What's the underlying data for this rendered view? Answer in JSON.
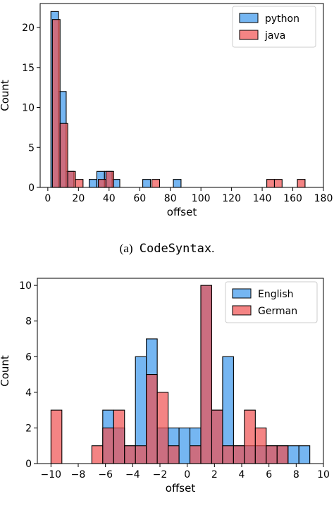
{
  "chart_data": [
    {
      "type": "bar",
      "xlabel": "offset",
      "ylabel": "Count",
      "xlim": [
        -5,
        180
      ],
      "ylim": [
        0,
        23
      ],
      "xticks": [
        0,
        20,
        40,
        60,
        80,
        100,
        120,
        140,
        160,
        180
      ],
      "yticks": [
        0,
        5,
        10,
        15,
        20
      ],
      "legend_position": "top-right",
      "bin_width": 5,
      "series": [
        {
          "name": "python",
          "color": "#5da9f0",
          "bins": [
            {
              "x": 2,
              "count": 22
            },
            {
              "x": 7,
              "count": 12
            },
            {
              "x": 12,
              "count": 2
            },
            {
              "x": 27,
              "count": 1
            },
            {
              "x": 32,
              "count": 2
            },
            {
              "x": 37,
              "count": 2
            },
            {
              "x": 42,
              "count": 1
            },
            {
              "x": 62,
              "count": 1
            },
            {
              "x": 82,
              "count": 1
            }
          ]
        },
        {
          "name": "java",
          "color": "#f05050",
          "bins": [
            {
              "x": 3,
              "count": 21
            },
            {
              "x": 8,
              "count": 8
            },
            {
              "x": 13,
              "count": 2
            },
            {
              "x": 18,
              "count": 1
            },
            {
              "x": 33,
              "count": 1
            },
            {
              "x": 38,
              "count": 2
            },
            {
              "x": 68,
              "count": 1
            },
            {
              "x": 143,
              "count": 1
            },
            {
              "x": 148,
              "count": 1
            },
            {
              "x": 163,
              "count": 1
            }
          ]
        }
      ]
    },
    {
      "type": "bar",
      "xlabel": "offset",
      "ylabel": "Count",
      "xlim": [
        -11,
        10
      ],
      "ylim": [
        0,
        10.4
      ],
      "xticks": [
        -10,
        -8,
        -6,
        -4,
        -2,
        0,
        2,
        4,
        6,
        8,
        10
      ],
      "yticks": [
        0,
        2,
        4,
        6,
        8,
        10
      ],
      "legend_position": "top-right",
      "bin_width": 0.8,
      "series": [
        {
          "name": "English",
          "color": "#5da9f0",
          "bins": [
            {
              "x": -6.2,
              "count": 3
            },
            {
              "x": -5.4,
              "count": 2
            },
            {
              "x": -4.6,
              "count": 1
            },
            {
              "x": -3.8,
              "count": 6
            },
            {
              "x": -3.0,
              "count": 7
            },
            {
              "x": -2.2,
              "count": 2
            },
            {
              "x": -1.4,
              "count": 2
            },
            {
              "x": -0.6,
              "count": 2
            },
            {
              "x": 0.2,
              "count": 2
            },
            {
              "x": 1.0,
              "count": 10
            },
            {
              "x": 1.8,
              "count": 3
            },
            {
              "x": 2.6,
              "count": 6
            },
            {
              "x": 3.4,
              "count": 1
            },
            {
              "x": 4.2,
              "count": 1
            },
            {
              "x": 5.0,
              "count": 1
            },
            {
              "x": 5.8,
              "count": 1
            },
            {
              "x": 6.6,
              "count": 1
            },
            {
              "x": 7.4,
              "count": 1
            },
            {
              "x": 8.2,
              "count": 1
            }
          ]
        },
        {
          "name": "German",
          "color": "#f05050",
          "bins": [
            {
              "x": -10.0,
              "count": 3
            },
            {
              "x": -7.0,
              "count": 1
            },
            {
              "x": -6.2,
              "count": 2
            },
            {
              "x": -5.4,
              "count": 3
            },
            {
              "x": -4.6,
              "count": 1
            },
            {
              "x": -3.8,
              "count": 1
            },
            {
              "x": -3.0,
              "count": 5
            },
            {
              "x": -2.2,
              "count": 4
            },
            {
              "x": -1.4,
              "count": 1
            },
            {
              "x": 0.2,
              "count": 1
            },
            {
              "x": 1.0,
              "count": 10
            },
            {
              "x": 1.8,
              "count": 3
            },
            {
              "x": 2.6,
              "count": 1
            },
            {
              "x": 3.4,
              "count": 1
            },
            {
              "x": 4.2,
              "count": 3
            },
            {
              "x": 5.0,
              "count": 2
            },
            {
              "x": 5.8,
              "count": 1
            },
            {
              "x": 6.6,
              "count": 1
            }
          ]
        }
      ]
    }
  ],
  "captions": {
    "a_prefix": "(a)",
    "a_name": "CodeSyntax",
    "a_suffix": "."
  }
}
